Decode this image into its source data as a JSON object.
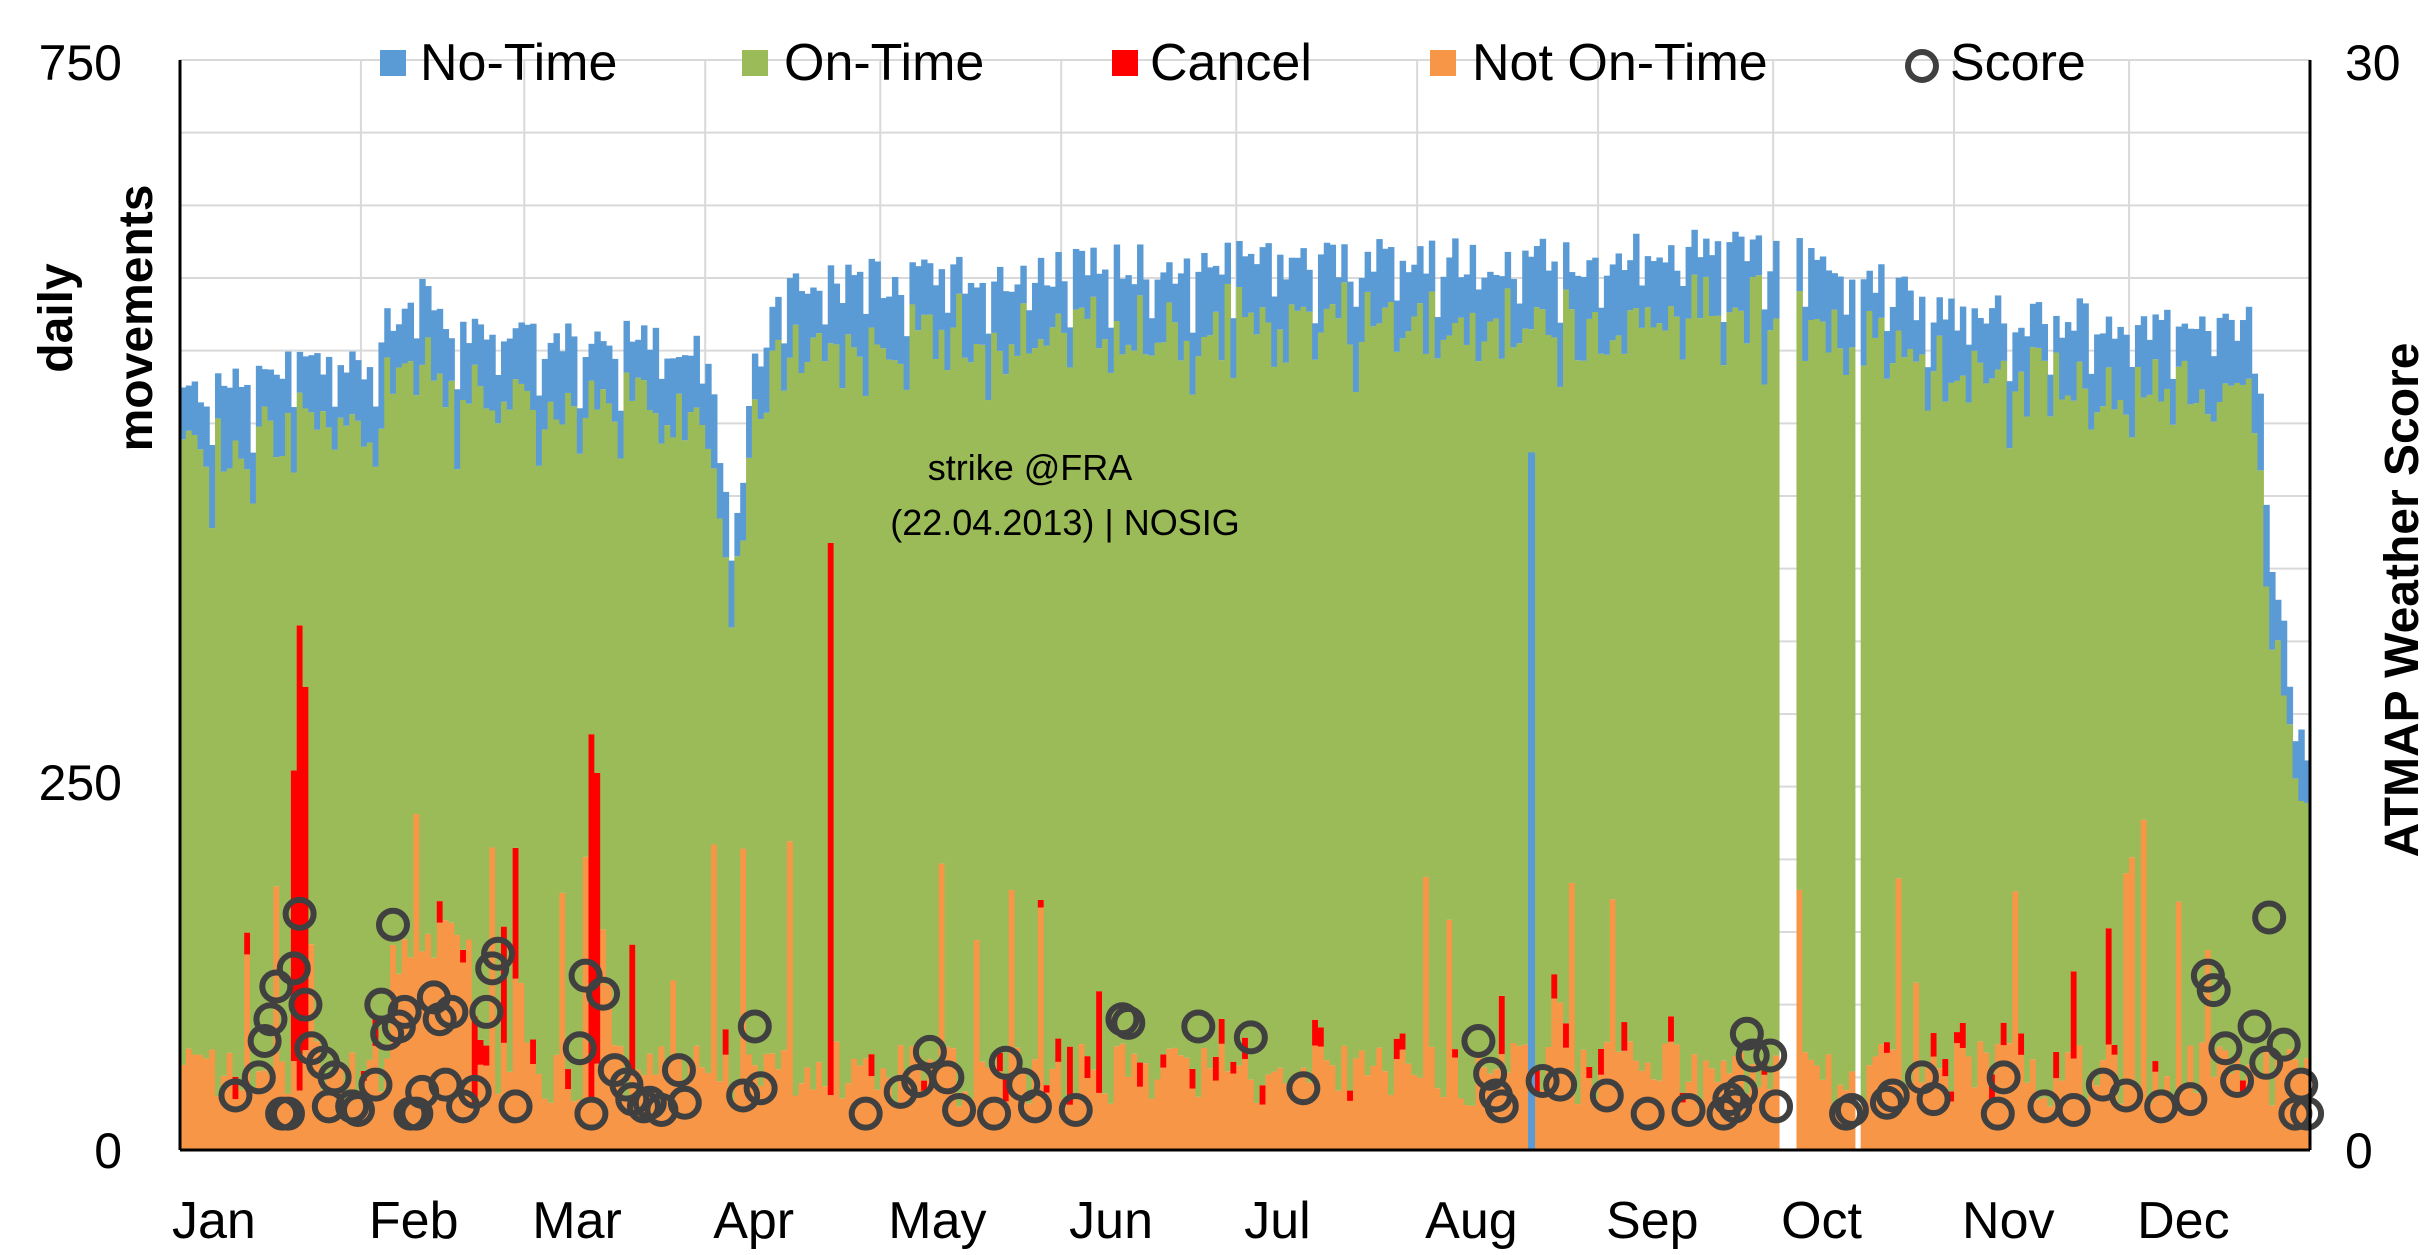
{
  "chart_data": {
    "type": "bar",
    "stacked": true,
    "title": "",
    "ylabel_left": "daily movements",
    "ylabel_right": "ATMAP Weather Score",
    "ylim_left": [
      0,
      750
    ],
    "ylim_right": [
      0,
      30
    ],
    "yticks_left": [
      "750",
      "250",
      "0"
    ],
    "yticks_right": [
      "30",
      "0"
    ],
    "months": [
      "Jan",
      "Feb",
      "Mar",
      "Apr",
      "May",
      "Jun",
      "Jul",
      "Aug",
      "Sep",
      "Oct",
      "Nov",
      "Dec"
    ],
    "month_start_days": [
      0,
      31,
      59,
      90,
      120,
      151,
      181,
      212,
      243,
      273,
      304,
      334
    ],
    "days_in_year": 365,
    "legend": [
      {
        "key": "no_time",
        "label": "No-Time",
        "color": "#5B9BD5",
        "marker": "square"
      },
      {
        "key": "on_time",
        "label": "On-Time",
        "color": "#9BBB59",
        "marker": "square"
      },
      {
        "key": "cancel",
        "label": "Cancel",
        "color": "#FF0000",
        "marker": "square"
      },
      {
        "key": "not_on_time",
        "label": "Not On-Time",
        "color": "#F79646",
        "marker": "square"
      },
      {
        "key": "score",
        "label": "Score",
        "color": "#404040",
        "marker": "circle"
      }
    ],
    "annotation": {
      "line1": "strike @FRA",
      "line2": "(22.04.2013) | NOSIG",
      "day": 111
    },
    "series_generation_note": "Approximated daily values (2013)",
    "baseline_total": [
      {
        "day": 0,
        "value": 520
      },
      {
        "day": 31,
        "value": 545
      },
      {
        "day": 40,
        "value": 590
      },
      {
        "day": 48,
        "value": 560
      },
      {
        "day": 90,
        "value": 555
      },
      {
        "day": 94,
        "value": 420
      },
      {
        "day": 98,
        "value": 545
      },
      {
        "day": 104,
        "value": 595
      },
      {
        "day": 160,
        "value": 610
      },
      {
        "day": 243,
        "value": 615
      },
      {
        "day": 268,
        "value": 620
      },
      {
        "day": 287,
        "value": 605
      },
      {
        "day": 300,
        "value": 575
      },
      {
        "day": 355,
        "value": 570
      },
      {
        "day": 358,
        "value": 385
      },
      {
        "day": 364,
        "value": 280
      }
    ],
    "cancel_spikes": [
      {
        "day": 19,
        "value": 200
      },
      {
        "day": 20,
        "value": 320
      },
      {
        "day": 21,
        "value": 250
      },
      {
        "day": 50,
        "value": 60
      },
      {
        "day": 55,
        "value": 80
      },
      {
        "day": 57,
        "value": 90
      },
      {
        "day": 70,
        "value": 250
      },
      {
        "day": 71,
        "value": 200
      },
      {
        "day": 77,
        "value": 90
      },
      {
        "day": 111,
        "value": 380
      },
      {
        "day": 152,
        "value": 40
      },
      {
        "day": 157,
        "value": 70
      },
      {
        "day": 226,
        "value": 40
      },
      {
        "day": 324,
        "value": 60
      },
      {
        "day": 330,
        "value": 80
      }
    ],
    "no_time_spike": {
      "day": 231,
      "value": 480
    },
    "gaps": [
      274,
      275,
      276,
      287
    ],
    "score_points": [
      {
        "day": 9,
        "value": 1.5
      },
      {
        "day": 13,
        "value": 2
      },
      {
        "day": 14,
        "value": 3
      },
      {
        "day": 15,
        "value": 3.6
      },
      {
        "day": 16,
        "value": 4.5
      },
      {
        "day": 17,
        "value": 1
      },
      {
        "day": 18,
        "value": 1
      },
      {
        "day": 19,
        "value": 5
      },
      {
        "day": 20,
        "value": 6.5
      },
      {
        "day": 21,
        "value": 4
      },
      {
        "day": 22,
        "value": 2.8
      },
      {
        "day": 24,
        "value": 2.4
      },
      {
        "day": 25,
        "value": 1.2
      },
      {
        "day": 26,
        "value": 2
      },
      {
        "day": 29,
        "value": 1.2
      },
      {
        "day": 30,
        "value": 1.1
      },
      {
        "day": 33,
        "value": 1.8
      },
      {
        "day": 34,
        "value": 4
      },
      {
        "day": 35,
        "value": 3.2
      },
      {
        "day": 36,
        "value": 6.2
      },
      {
        "day": 37,
        "value": 3.4
      },
      {
        "day": 38,
        "value": 3.8
      },
      {
        "day": 39,
        "value": 1
      },
      {
        "day": 40,
        "value": 1
      },
      {
        "day": 41,
        "value": 1.6
      },
      {
        "day": 43,
        "value": 4.2
      },
      {
        "day": 44,
        "value": 3.6
      },
      {
        "day": 45,
        "value": 1.8
      },
      {
        "day": 46,
        "value": 3.8
      },
      {
        "day": 48,
        "value": 1.2
      },
      {
        "day": 50,
        "value": 1.6
      },
      {
        "day": 52,
        "value": 3.8
      },
      {
        "day": 53,
        "value": 5
      },
      {
        "day": 54,
        "value": 5.4
      },
      {
        "day": 57,
        "value": 1.2
      },
      {
        "day": 68,
        "value": 2.8
      },
      {
        "day": 69,
        "value": 4.8
      },
      {
        "day": 70,
        "value": 1
      },
      {
        "day": 72,
        "value": 4.3
      },
      {
        "day": 74,
        "value": 2.2
      },
      {
        "day": 76,
        "value": 1.8
      },
      {
        "day": 77,
        "value": 1.4
      },
      {
        "day": 79,
        "value": 1.2
      },
      {
        "day": 80,
        "value": 1.3
      },
      {
        "day": 82,
        "value": 1.1
      },
      {
        "day": 85,
        "value": 2.2
      },
      {
        "day": 86,
        "value": 1.3
      },
      {
        "day": 96,
        "value": 1.5
      },
      {
        "day": 98,
        "value": 3.4
      },
      {
        "day": 99,
        "value": 1.7
      },
      {
        "day": 117,
        "value": 1
      },
      {
        "day": 123,
        "value": 1.6
      },
      {
        "day": 126,
        "value": 1.9
      },
      {
        "day": 128,
        "value": 2.7
      },
      {
        "day": 131,
        "value": 2
      },
      {
        "day": 133,
        "value": 1.1
      },
      {
        "day": 139,
        "value": 1
      },
      {
        "day": 141,
        "value": 2.4
      },
      {
        "day": 144,
        "value": 1.8
      },
      {
        "day": 146,
        "value": 1.2
      },
      {
        "day": 153,
        "value": 1.1
      },
      {
        "day": 161,
        "value": 3.6
      },
      {
        "day": 162,
        "value": 3.5
      },
      {
        "day": 174,
        "value": 3.4
      },
      {
        "day": 183,
        "value": 3.1
      },
      {
        "day": 192,
        "value": 1.7
      },
      {
        "day": 222,
        "value": 3
      },
      {
        "day": 224,
        "value": 2.1
      },
      {
        "day": 225,
        "value": 1.5
      },
      {
        "day": 226,
        "value": 1.2
      },
      {
        "day": 233,
        "value": 1.9
      },
      {
        "day": 236,
        "value": 1.8
      },
      {
        "day": 244,
        "value": 1.5
      },
      {
        "day": 251,
        "value": 1
      },
      {
        "day": 258,
        "value": 1.1
      },
      {
        "day": 264,
        "value": 1
      },
      {
        "day": 265,
        "value": 1.4
      },
      {
        "day": 266,
        "value": 1.2
      },
      {
        "day": 267,
        "value": 1.6
      },
      {
        "day": 268,
        "value": 3.2
      },
      {
        "day": 269,
        "value": 2.6
      },
      {
        "day": 272,
        "value": 2.6
      },
      {
        "day": 273,
        "value": 1.2
      },
      {
        "day": 285,
        "value": 1
      },
      {
        "day": 286,
        "value": 1.1
      },
      {
        "day": 292,
        "value": 1.3
      },
      {
        "day": 293,
        "value": 1.5
      },
      {
        "day": 298,
        "value": 2
      },
      {
        "day": 300,
        "value": 1.4
      },
      {
        "day": 311,
        "value": 1
      },
      {
        "day": 312,
        "value": 2
      },
      {
        "day": 319,
        "value": 1.2
      },
      {
        "day": 324,
        "value": 1.1
      },
      {
        "day": 329,
        "value": 1.8
      },
      {
        "day": 333,
        "value": 1.5
      },
      {
        "day": 339,
        "value": 1.2
      },
      {
        "day": 344,
        "value": 1.4
      },
      {
        "day": 347,
        "value": 4.8
      },
      {
        "day": 348,
        "value": 4.4
      },
      {
        "day": 350,
        "value": 2.8
      },
      {
        "day": 352,
        "value": 1.9
      },
      {
        "day": 355,
        "value": 3.4
      },
      {
        "day": 357,
        "value": 2.4
      },
      {
        "day": 357.5,
        "value": 6.4
      },
      {
        "day": 360,
        "value": 2.9
      },
      {
        "day": 362,
        "value": 1
      },
      {
        "day": 363,
        "value": 1.8
      },
      {
        "day": 364,
        "value": 1
      }
    ]
  }
}
